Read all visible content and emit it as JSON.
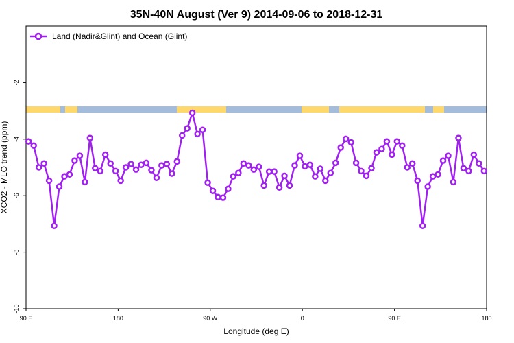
{
  "chart_data": {
    "type": "line",
    "title": "35N-40N August (Ver 9)   2014-09-06 to 2018-12-31",
    "x_label": "Longitude (deg E)",
    "y_label": "XCO2 - MLO trend (ppm)",
    "xlim": [
      90,
      540
    ],
    "ylim": [
      -10,
      0
    ],
    "xticks": [
      {
        "value": 90,
        "label": "90 E"
      },
      180,
      {
        "value": 270,
        "label": "90 W"
      },
      {
        "value": 360,
        "label": "0"
      },
      {
        "value": 450,
        "label": "90 E"
      },
      {
        "value": 540,
        "label": "180"
      }
    ],
    "yticks": [
      -10,
      -8,
      -6,
      -4,
      -2
    ],
    "legend": "top-left",
    "x": [
      92.5,
      97.5,
      102.5,
      107.5,
      112.5,
      117.5,
      122.5,
      127.5,
      132.5,
      137.5,
      142.5,
      147.5,
      152.5,
      157.5,
      162.5,
      167.5,
      172.5,
      177.5,
      182.5,
      187.5,
      192.5,
      197.5,
      202.5,
      207.5,
      212.5,
      217.5,
      222.5,
      227.5,
      232.5,
      237.5,
      242.5,
      247.5,
      252.5,
      257.5,
      262.5,
      267.5,
      272.5,
      277.5,
      282.5,
      287.5,
      292.5,
      297.5,
      302.5,
      307.5,
      312.5,
      317.5,
      322.5,
      327.5,
      332.5,
      337.5,
      342.5,
      347.5,
      352.5,
      357.5,
      362.5,
      367.5,
      372.5,
      377.5,
      382.5,
      387.5,
      392.5,
      397.5,
      402.5,
      407.5,
      412.5,
      417.5,
      422.5,
      427.5,
      432.5,
      437.5,
      442.5,
      447.5,
      452.5,
      457.5,
      462.5,
      467.5,
      472.5,
      477.5,
      482.5,
      487.5,
      492.5,
      497.5,
      502.5,
      507.5,
      512.5,
      517.5,
      522.5,
      527.5,
      532.5,
      537.5
    ],
    "series": [
      {
        "name": "Land (Nadir&Glint) and Ocean (Glint)",
        "color": "#a020f0",
        "values": [
          -4.08,
          -4.23,
          -5.0,
          -4.86,
          -5.47,
          -7.07,
          -5.68,
          -5.32,
          -5.25,
          -4.76,
          -4.59,
          -5.52,
          -3.96,
          -5.03,
          -5.13,
          -4.55,
          -4.86,
          -5.13,
          -5.47,
          -5.0,
          -4.88,
          -5.08,
          -4.91,
          -4.84,
          -5.1,
          -5.37,
          -4.93,
          -4.88,
          -5.22,
          -4.79,
          -3.87,
          -3.62,
          -3.07,
          -3.82,
          -3.67,
          -5.54,
          -5.83,
          -6.05,
          -6.07,
          -5.76,
          -5.32,
          -5.2,
          -4.86,
          -4.93,
          -5.08,
          -4.98,
          -5.64,
          -5.15,
          -5.15,
          -5.71,
          -5.3,
          -5.64,
          -4.93,
          -4.59,
          -4.96,
          -4.91,
          -5.32,
          -5.05,
          -5.47,
          -5.2,
          -4.84,
          -4.3,
          -3.99,
          -4.11,
          -4.84,
          -5.13,
          -5.3,
          -5.03,
          -4.47,
          -4.35,
          -4.08,
          -4.55,
          -4.08,
          -4.23,
          -5.0,
          -4.86,
          -5.47,
          -7.07,
          -5.68,
          -5.32,
          -5.25,
          -4.76,
          -4.59,
          -5.52,
          -3.96,
          -5.03,
          -5.13,
          -4.55,
          -4.86,
          -5.13
        ]
      }
    ]
  }
}
